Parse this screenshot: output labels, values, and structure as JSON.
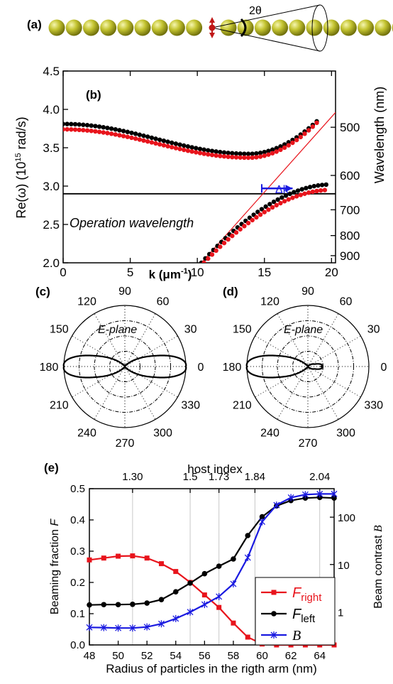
{
  "panel_a": {
    "label": "(a)",
    "angle_label": "2θ",
    "colors": {
      "particle": "#b5b51e",
      "particle_light": "#f4f4a0",
      "dipole": "#c01818"
    }
  },
  "chart_data": [
    {
      "id": "b",
      "type": "line",
      "panel_label": "(b)",
      "xlabel_main": "k (μm",
      "xlabel_sup": "-1",
      "xlabel_end": ")",
      "ylabel_main": "Re(ω) (10",
      "ylabel_sup": "15",
      "ylabel_end": " rad/s)",
      "y2label": "Wavelength (nm)",
      "xlim": [
        0,
        20.3
      ],
      "ylim": [
        2.0,
        4.5
      ],
      "xticks": [
        "0",
        "5",
        "10",
        "15",
        "20"
      ],
      "xtick_values": [
        0,
        5,
        10,
        15,
        20
      ],
      "yticks": [
        "2.0",
        "2.5",
        "3.0",
        "3.5",
        "4.0",
        "4.5"
      ],
      "ytick_values": [
        2.0,
        2.5,
        3.0,
        3.5,
        4.0,
        4.5
      ],
      "y2ticks": [
        {
          "label": "500",
          "omega": 3.767
        },
        {
          "label": "600",
          "omega": 3.139
        },
        {
          "label": "700",
          "omega": 2.691
        },
        {
          "label": "800",
          "omega": 2.355
        },
        {
          "label": "900",
          "omega": 2.093
        }
      ],
      "annotation_operation": "Operation wavelength",
      "operation_omega": 2.9,
      "light_line": [
        [
          10.3,
          2.0
        ],
        [
          20.3,
          3.96
        ]
      ],
      "delta_k": {
        "label": "Δk",
        "k_from": 14.8,
        "k_to": 17.1,
        "omega": 2.97
      },
      "series": [
        {
          "color": "#000000",
          "upper": {
            "k0": 0.0,
            "k1": 19.0,
            "w0": 3.81,
            "wmin": 3.42,
            "kmin": 13.9
          },
          "lower": {
            "k0": 10.3,
            "k1": 19.8,
            "wstart": 2.0,
            "wend": 3.02
          }
        },
        {
          "color": "#e8141c",
          "upper": {
            "k0": 0.0,
            "k1": 19.1,
            "w0": 3.74,
            "wmin": 3.37,
            "kmin": 13.9
          },
          "lower": {
            "k0": 10.5,
            "k1": 19.8,
            "wstart": 2.0,
            "wend": 2.95
          }
        }
      ]
    },
    {
      "id": "c",
      "type": "polar",
      "panel_label": "(c)",
      "plane_label": "E-plane",
      "angle_labels": [
        "0",
        "30",
        "60",
        "90",
        "120",
        "150",
        "180",
        "210",
        "240",
        "270",
        "300",
        "330"
      ],
      "angle_values": [
        0,
        30,
        60,
        90,
        120,
        150,
        180,
        210,
        240,
        270,
        300,
        330
      ],
      "lobes": {
        "left_amp": 1.0,
        "right_amp": 1.0,
        "exponent": 4
      }
    },
    {
      "id": "d",
      "type": "polar",
      "panel_label": "(d)",
      "plane_label": "E-plane",
      "angle_labels": [
        "0",
        "30",
        "60",
        "90",
        "120",
        "150",
        "180",
        "210",
        "240",
        "270",
        "300",
        "330"
      ],
      "angle_values": [
        0,
        30,
        60,
        90,
        120,
        150,
        180,
        210,
        240,
        270,
        300,
        330
      ],
      "lobes": {
        "left_amp": 1.0,
        "right_amp": 0.22,
        "exponent": 4
      }
    },
    {
      "id": "e",
      "type": "line",
      "panel_label": "(e)",
      "xlabel": "Radius of  particles in the rigth arm (nm)",
      "ylabel_main": "Beaming fraction ",
      "ylabel_italic": "F",
      "y2label_main": "Beam contrast ",
      "y2label_italic": "B",
      "top_axis_title": "host index",
      "top_ticks": [
        {
          "label": "1.30",
          "x": 51
        },
        {
          "label": "1.5",
          "x": 55
        },
        {
          "label": "1.73",
          "x": 57
        },
        {
          "label": "1.84",
          "x": 59.5
        },
        {
          "label": "2.04",
          "x": 64
        }
      ],
      "xlim": [
        48,
        65
      ],
      "ylim": [
        0.0,
        0.5
      ],
      "xticks": [
        "48",
        "50",
        "52",
        "54",
        "56",
        "58",
        "60",
        "62",
        "64"
      ],
      "xtick_values": [
        48,
        50,
        52,
        54,
        56,
        58,
        60,
        62,
        64
      ],
      "yticks": [
        "0.0",
        "0.1",
        "0.2",
        "0.3",
        "0.4",
        "0.5"
      ],
      "ytick_values": [
        0.0,
        0.1,
        0.2,
        0.3,
        0.4,
        0.5
      ],
      "y2ticks": [
        {
          "label": "1",
          "value": 1
        },
        {
          "label": "10",
          "value": 10
        },
        {
          "label": "100",
          "value": 100
        }
      ],
      "y2lim_log": [
        0.2,
        400
      ],
      "x": [
        48,
        49,
        50,
        51,
        52,
        53,
        54,
        55,
        56,
        57,
        58,
        59,
        60,
        61,
        62,
        63,
        64,
        65
      ],
      "series": [
        {
          "name_main": "F",
          "name_sub": "right",
          "axis": "left",
          "color": "#e8141c",
          "marker": "square",
          "values": [
            0.272,
            0.278,
            0.284,
            0.285,
            0.278,
            0.26,
            0.235,
            0.2,
            0.16,
            0.12,
            0.07,
            0.025,
            0.003,
            0.0,
            0.0,
            0.0,
            0.0,
            0.0
          ]
        },
        {
          "name_main": "F",
          "name_sub": "left",
          "axis": "left",
          "color": "#000000",
          "marker": "circle",
          "values": [
            0.128,
            0.129,
            0.129,
            0.13,
            0.134,
            0.145,
            0.17,
            0.198,
            0.228,
            0.252,
            0.275,
            0.35,
            0.41,
            0.445,
            0.462,
            0.47,
            0.472,
            0.47
          ]
        },
        {
          "name_main": "B",
          "name_sub": "",
          "axis": "right",
          "color": "#1a1ae0",
          "marker": "asterisk",
          "values": [
            0.47,
            0.465,
            0.455,
            0.455,
            0.48,
            0.56,
            0.72,
            0.99,
            1.43,
            2.1,
            3.9,
            14,
            80,
            180,
            260,
            300,
            310,
            310
          ]
        }
      ]
    }
  ]
}
